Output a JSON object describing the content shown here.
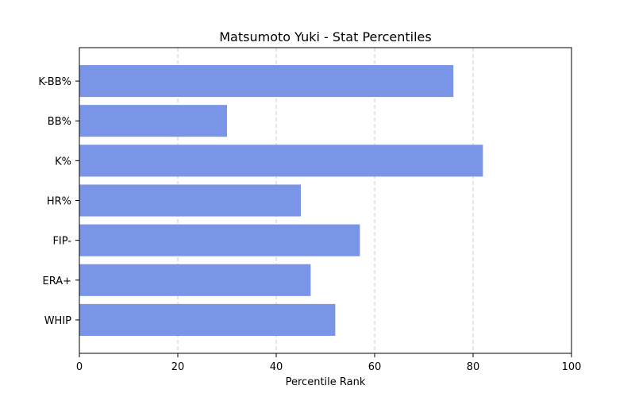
{
  "chart_data": {
    "type": "bar",
    "orientation": "horizontal",
    "title": "Matsumoto Yuki - Stat Percentiles",
    "xlabel": "Percentile Rank",
    "ylabel": "",
    "xlim": [
      0,
      100
    ],
    "xticks": [
      0,
      20,
      40,
      60,
      80,
      100
    ],
    "grid": "x-dashed",
    "bar_color": "#7a95e8",
    "categories": [
      "K-BB%",
      "BB%",
      "K%",
      "HR%",
      "FIP-",
      "ERA+",
      "WHIP"
    ],
    "values": [
      76,
      30,
      82,
      45,
      57,
      47,
      52
    ]
  }
}
